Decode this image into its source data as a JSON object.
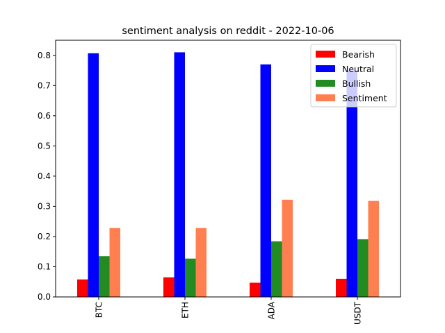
{
  "chart_data": {
    "type": "bar",
    "title": "sentiment analysis on reddit - 2022-10-06",
    "categories": [
      "BTC",
      "ETH",
      "ADA",
      "USDT"
    ],
    "series": [
      {
        "name": "Bearish",
        "color": "#ff0000",
        "values": [
          0.058,
          0.065,
          0.047,
          0.06
        ]
      },
      {
        "name": "Neutral",
        "color": "#0000ff",
        "values": [
          0.807,
          0.81,
          0.77,
          0.75
        ]
      },
      {
        "name": "Bullish",
        "color": "#228b22",
        "values": [
          0.135,
          0.127,
          0.184,
          0.191
        ]
      },
      {
        "name": "Sentiment",
        "color": "#ff7f50",
        "values": [
          0.228,
          0.228,
          0.322,
          0.318
        ]
      }
    ],
    "xlabel": "",
    "ylabel": "",
    "ylim": [
      0,
      0.85
    ],
    "yticks": [
      "0.0",
      "0.1",
      "0.2",
      "0.3",
      "0.4",
      "0.5",
      "0.6",
      "0.7",
      "0.8"
    ],
    "grid": false,
    "legend_position": "top-right"
  }
}
